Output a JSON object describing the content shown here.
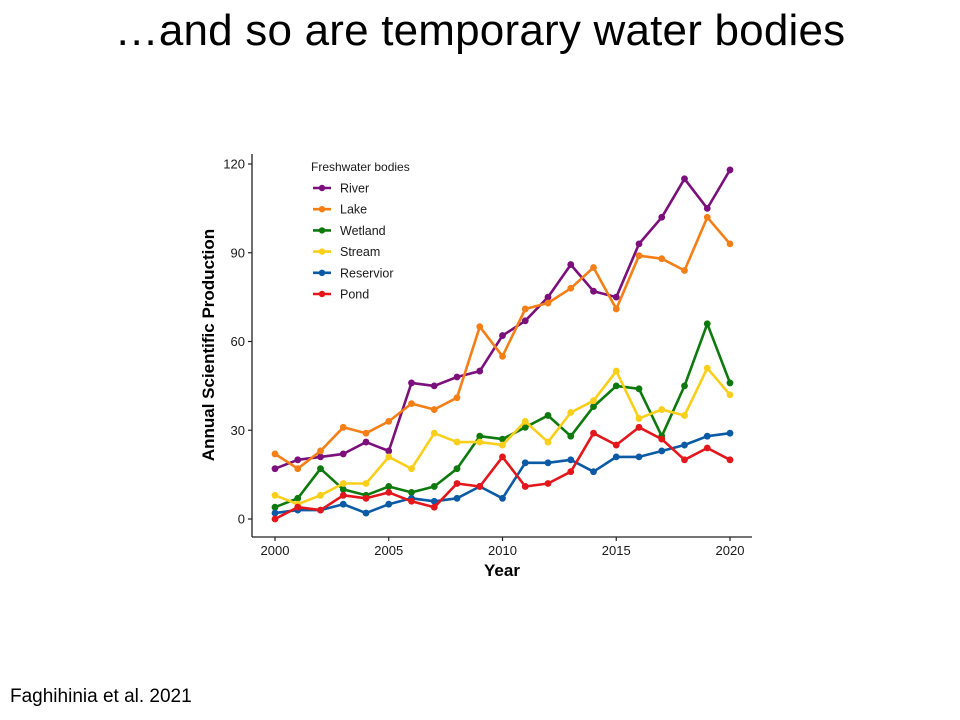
{
  "slide": {
    "title": "…and so are temporary water bodies",
    "citation": "Faghihinia et al. 2021"
  },
  "chart_data": {
    "type": "line",
    "title": "",
    "xlabel": "Year",
    "ylabel": "Annual Scientific Production",
    "x": [
      2000,
      2001,
      2002,
      2003,
      2004,
      2005,
      2006,
      2007,
      2008,
      2009,
      2010,
      2011,
      2012,
      2013,
      2014,
      2015,
      2016,
      2017,
      2018,
      2019,
      2020
    ],
    "xticks": [
      2000,
      2005,
      2010,
      2015,
      2020
    ],
    "xtick_labels": [
      "2000",
      "2005",
      "2010",
      "2015",
      "2020"
    ],
    "yticks": [
      0,
      30,
      60,
      90,
      120
    ],
    "ytick_labels": [
      "0",
      "30",
      "60",
      "90",
      "120"
    ],
    "xlim": [
      1999,
      2021
    ],
    "ylim": [
      -5,
      125
    ],
    "grid": false,
    "legend": {
      "title": "Freshwater bodies",
      "placement": "top-left"
    },
    "series": [
      {
        "name": "River",
        "color": "#7B0F7B",
        "values": [
          17,
          20,
          21,
          22,
          26,
          23,
          46,
          45,
          48,
          50,
          62,
          67,
          75,
          86,
          77,
          75,
          93,
          102,
          115,
          105,
          118
        ]
      },
      {
        "name": "Lake",
        "color": "#F47F17",
        "values": [
          22,
          17,
          23,
          31,
          29,
          33,
          39,
          37,
          41,
          65,
          55,
          71,
          73,
          78,
          85,
          71,
          89,
          88,
          84,
          102,
          93
        ]
      },
      {
        "name": "Wetland",
        "color": "#0E7A0E",
        "values": [
          4,
          7,
          17,
          10,
          8,
          11,
          9,
          11,
          17,
          28,
          27,
          31,
          35,
          28,
          38,
          45,
          44,
          28,
          45,
          66,
          46
        ]
      },
      {
        "name": "Stream",
        "color": "#F9CF1A",
        "values": [
          8,
          5,
          8,
          12,
          12,
          21,
          17,
          29,
          26,
          26,
          25,
          33,
          26,
          36,
          40,
          50,
          34,
          37,
          35,
          51,
          42
        ]
      },
      {
        "name": "Reservior",
        "color": "#0A5AA5",
        "values": [
          2,
          3,
          3,
          5,
          2,
          5,
          7,
          6,
          7,
          11,
          7,
          19,
          19,
          20,
          16,
          21,
          21,
          23,
          25,
          28,
          29
        ]
      },
      {
        "name": "Pond",
        "color": "#E3171B",
        "values": [
          0,
          4,
          3,
          8,
          7,
          9,
          6,
          4,
          12,
          11,
          21,
          11,
          12,
          16,
          29,
          25,
          31,
          27,
          20,
          24,
          20
        ]
      }
    ]
  }
}
